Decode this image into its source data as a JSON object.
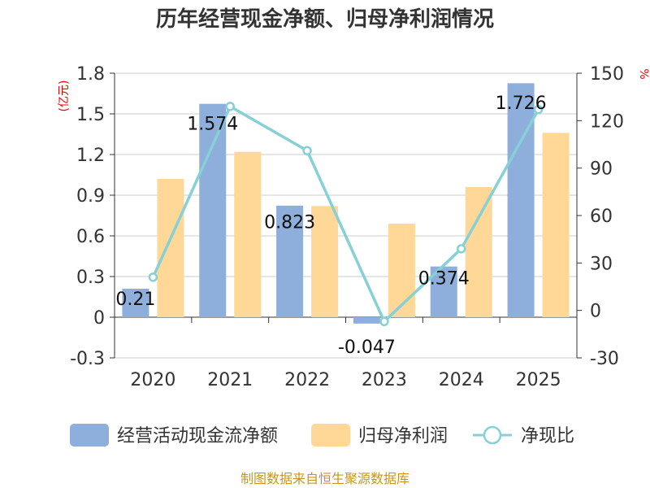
{
  "chart_data": {
    "type": "bar+line",
    "title": "历年经营现金净额、归母净利润情况",
    "categories": [
      "2020",
      "2021",
      "2022",
      "2023",
      "2024",
      "2025"
    ],
    "series": [
      {
        "name": "经营活动现金流净额",
        "type": "bar",
        "axis": "left",
        "color": "#8eaedb",
        "values": [
          0.21,
          1.574,
          0.823,
          -0.047,
          0.374,
          1.726
        ],
        "labels": [
          "0.21",
          "1.574",
          "0.823",
          "-0.047",
          "0.374",
          "1.726"
        ]
      },
      {
        "name": "归母净利润",
        "type": "bar",
        "axis": "left",
        "color": "#ffd897",
        "values": [
          1.02,
          1.22,
          0.82,
          0.69,
          0.96,
          1.36
        ]
      },
      {
        "name": "净现比",
        "type": "line",
        "axis": "right",
        "color": "#86d0d6",
        "values": [
          21,
          129,
          101,
          -7,
          39,
          127
        ]
      }
    ],
    "left_axis": {
      "unit": "(亿元)",
      "min": -0.3,
      "max": 1.8,
      "ticks": [
        -0.3,
        0,
        0.3,
        0.6,
        0.9,
        1.2,
        1.5,
        1.8
      ],
      "tick_labels": [
        "-0.3",
        "0",
        "0.3",
        "0.6",
        "0.9",
        "1.2",
        "1.5",
        "1.8"
      ]
    },
    "right_axis": {
      "unit": "%",
      "min": -30,
      "max": 150,
      "ticks": [
        -30,
        0,
        30,
        60,
        90,
        120,
        150
      ],
      "tick_labels": [
        "-30",
        "0",
        "30",
        "60",
        "90",
        "120",
        "150"
      ]
    },
    "grid": true,
    "legend_position": "bottom",
    "unit_color": "#e60000",
    "source": "制图数据来自恒生聚源数据库",
    "source_color": "#c8961e"
  }
}
